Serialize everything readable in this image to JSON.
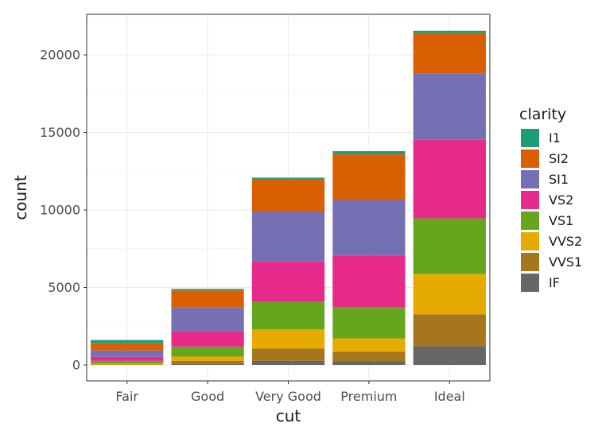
{
  "chart_data": {
    "type": "bar",
    "stacked": true,
    "title": "",
    "xlabel": "cut",
    "ylabel": "count",
    "categories": [
      "Fair",
      "Good",
      "Very Good",
      "Premium",
      "Ideal"
    ],
    "ylim": [
      0,
      22700
    ],
    "yticks": [
      0,
      5000,
      10000,
      15000,
      20000
    ],
    "ytick_labels": [
      "0",
      "5000",
      "10000",
      "15000",
      "20000"
    ],
    "grid": true,
    "legend": {
      "title": "clarity",
      "position": "right"
    },
    "series": [
      {
        "name": "IF",
        "color": "#666666",
        "values": [
          9,
          71,
          268,
          230,
          1212
        ]
      },
      {
        "name": "VVS1",
        "color": "#A6761D",
        "values": [
          17,
          186,
          789,
          616,
          2047
        ]
      },
      {
        "name": "VVS2",
        "color": "#E6AB02",
        "values": [
          69,
          286,
          1235,
          870,
          2606
        ]
      },
      {
        "name": "VS1",
        "color": "#66A61E",
        "values": [
          170,
          648,
          1775,
          1989,
          3589
        ]
      },
      {
        "name": "VS2",
        "color": "#E7298A",
        "values": [
          261,
          978,
          2591,
          3357,
          5071
        ]
      },
      {
        "name": "SI1",
        "color": "#7570B3",
        "values": [
          408,
          1560,
          3240,
          3575,
          4282
        ]
      },
      {
        "name": "SI2",
        "color": "#D95F02",
        "values": [
          466,
          1081,
          2100,
          2949,
          2598
        ]
      },
      {
        "name": "I1",
        "color": "#1B9E77",
        "values": [
          210,
          96,
          84,
          205,
          146
        ]
      }
    ]
  }
}
